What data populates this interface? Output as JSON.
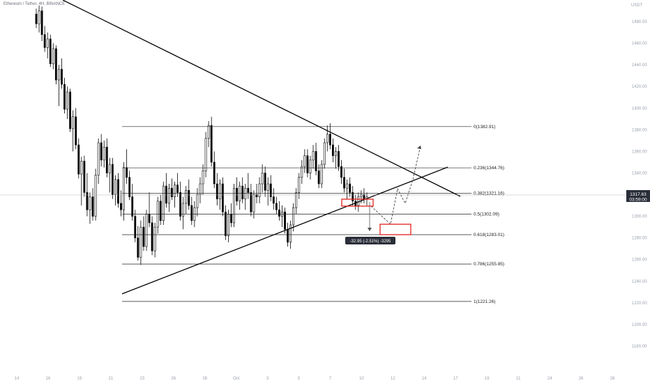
{
  "header": {
    "symbol_title": "Ethereum / Tether",
    "timeframe": "4H",
    "exchange": "BINANCE"
  },
  "colors": {
    "up": "#ffffff",
    "down": "#000000",
    "outline": "#000000",
    "fib": "#222222",
    "box": "#e0201b",
    "label_bg": "#2a2e39",
    "current_line": "#b2b5be"
  },
  "chart_data": {
    "type": "candlestick",
    "yunit": "USDT",
    "ylim": [
      1160,
      1500
    ],
    "y_ticks": [
      1180,
      1200,
      1220,
      1240,
      1260,
      1280,
      1300,
      1320,
      1340,
      1360,
      1380,
      1400,
      1420,
      1440,
      1460,
      1480
    ],
    "x_ticks": [
      "14",
      "16",
      "19",
      "21",
      "23",
      "26",
      "28",
      "Oct",
      "3",
      "5",
      "7",
      "10",
      "12",
      "14",
      "17",
      "19",
      "21",
      "24",
      "26",
      "28"
    ],
    "current_price": {
      "value": "1317.63",
      "countdown": "03:59:00"
    },
    "fib_levels": [
      {
        "ratio": "0",
        "price": 1382.91,
        "label": "0(1382.91)"
      },
      {
        "ratio": "0.236",
        "price": 1344.76,
        "label": "0.236(1344.76)"
      },
      {
        "ratio": "0.382",
        "price": 1321.16,
        "label": "0.382(1321.16)"
      },
      {
        "ratio": "0.5",
        "price": 1302.09,
        "label": "0.5(1302.09)"
      },
      {
        "ratio": "0.618",
        "price": 1283.01,
        "label": "0.618(1283.01)"
      },
      {
        "ratio": "0.786",
        "price": 1255.85,
        "label": "0.786(1255.85)"
      },
      {
        "ratio": "1",
        "price": 1221.26,
        "label": "1(1221.26)"
      }
    ],
    "measure_label": "-32.95 (-2.51%) -3295",
    "candles": [
      [
        1487,
        1492,
        1474,
        1478
      ],
      [
        1478,
        1495,
        1470,
        1490
      ],
      [
        1490,
        1494,
        1462,
        1468
      ],
      [
        1468,
        1476,
        1452,
        1456
      ],
      [
        1456,
        1470,
        1446,
        1464
      ],
      [
        1464,
        1468,
        1438,
        1441
      ],
      [
        1441,
        1460,
        1436,
        1455
      ],
      [
        1455,
        1458,
        1422,
        1426
      ],
      [
        1426,
        1440,
        1402,
        1436
      ],
      [
        1436,
        1446,
        1418,
        1422
      ],
      [
        1422,
        1428,
        1395,
        1399
      ],
      [
        1399,
        1420,
        1390,
        1415
      ],
      [
        1415,
        1418,
        1378,
        1381
      ],
      [
        1381,
        1398,
        1360,
        1392
      ],
      [
        1392,
        1400,
        1362,
        1366
      ],
      [
        1366,
        1372,
        1335,
        1339
      ],
      [
        1339,
        1355,
        1310,
        1351
      ],
      [
        1351,
        1356,
        1318,
        1322
      ],
      [
        1322,
        1340,
        1300,
        1306
      ],
      [
        1306,
        1322,
        1293,
        1318
      ],
      [
        1318,
        1326,
        1296,
        1300
      ],
      [
        1300,
        1344,
        1296,
        1338
      ],
      [
        1338,
        1372,
        1330,
        1368
      ],
      [
        1368,
        1376,
        1346,
        1352
      ],
      [
        1352,
        1370,
        1345,
        1364
      ],
      [
        1364,
        1372,
        1336,
        1340
      ],
      [
        1340,
        1354,
        1322,
        1348
      ],
      [
        1348,
        1354,
        1316,
        1320
      ],
      [
        1320,
        1338,
        1310,
        1334
      ],
      [
        1334,
        1340,
        1308,
        1312
      ],
      [
        1312,
        1324,
        1300,
        1306
      ],
      [
        1306,
        1350,
        1296,
        1345
      ],
      [
        1345,
        1362,
        1330,
        1336
      ],
      [
        1336,
        1342,
        1315,
        1318
      ],
      [
        1318,
        1330,
        1296,
        1300
      ],
      [
        1300,
        1306,
        1276,
        1280
      ],
      [
        1280,
        1291,
        1259,
        1262
      ],
      [
        1262,
        1296,
        1255,
        1290
      ],
      [
        1290,
        1300,
        1268,
        1272
      ],
      [
        1272,
        1306,
        1268,
        1302
      ],
      [
        1302,
        1322,
        1290,
        1294
      ],
      [
        1294,
        1300,
        1264,
        1268
      ],
      [
        1268,
        1294,
        1262,
        1290
      ],
      [
        1290,
        1318,
        1284,
        1314
      ],
      [
        1314,
        1320,
        1292,
        1296
      ],
      [
        1296,
        1332,
        1292,
        1328
      ],
      [
        1328,
        1340,
        1308,
        1312
      ],
      [
        1312,
        1330,
        1304,
        1326
      ],
      [
        1326,
        1335,
        1315,
        1318
      ],
      [
        1318,
        1332,
        1308,
        1329
      ],
      [
        1329,
        1340,
        1318,
        1322
      ],
      [
        1322,
        1332,
        1296,
        1300
      ],
      [
        1300,
        1318,
        1288,
        1312
      ],
      [
        1312,
        1328,
        1302,
        1324
      ],
      [
        1324,
        1334,
        1306,
        1310
      ],
      [
        1310,
        1318,
        1292,
        1296
      ],
      [
        1296,
        1314,
        1290,
        1308
      ],
      [
        1308,
        1326,
        1300,
        1320
      ],
      [
        1320,
        1336,
        1312,
        1330
      ],
      [
        1330,
        1348,
        1320,
        1342
      ],
      [
        1342,
        1378,
        1336,
        1372
      ],
      [
        1372,
        1388,
        1364,
        1384
      ],
      [
        1384,
        1392,
        1346,
        1350
      ],
      [
        1350,
        1360,
        1326,
        1330
      ],
      [
        1330,
        1340,
        1310,
        1316
      ],
      [
        1316,
        1334,
        1306,
        1330
      ],
      [
        1330,
        1336,
        1300,
        1304
      ],
      [
        1304,
        1310,
        1278,
        1282
      ],
      [
        1282,
        1306,
        1276,
        1302
      ],
      [
        1302,
        1312,
        1290,
        1294
      ],
      [
        1294,
        1330,
        1290,
        1326
      ],
      [
        1326,
        1336,
        1310,
        1314
      ],
      [
        1314,
        1332,
        1306,
        1328
      ],
      [
        1328,
        1336,
        1312,
        1316
      ],
      [
        1316,
        1330,
        1306,
        1326
      ],
      [
        1326,
        1340,
        1316,
        1322
      ],
      [
        1322,
        1330,
        1300,
        1304
      ],
      [
        1304,
        1324,
        1298,
        1320
      ],
      [
        1320,
        1330,
        1312,
        1318
      ],
      [
        1318,
        1336,
        1312,
        1330
      ],
      [
        1330,
        1348,
        1322,
        1340
      ],
      [
        1340,
        1346,
        1318,
        1324
      ],
      [
        1324,
        1336,
        1310,
        1330
      ],
      [
        1330,
        1338,
        1314,
        1318
      ],
      [
        1318,
        1326,
        1306,
        1312
      ],
      [
        1312,
        1318,
        1302,
        1306
      ],
      [
        1306,
        1314,
        1296,
        1300
      ],
      [
        1300,
        1310,
        1290,
        1304
      ],
      [
        1304,
        1308,
        1284,
        1288
      ],
      [
        1288,
        1294,
        1272,
        1276
      ],
      [
        1276,
        1296,
        1270,
        1292
      ],
      [
        1292,
        1312,
        1286,
        1308
      ],
      [
        1308,
        1326,
        1302,
        1322
      ],
      [
        1322,
        1340,
        1316,
        1336
      ],
      [
        1336,
        1352,
        1330,
        1346
      ],
      [
        1346,
        1362,
        1340,
        1356
      ],
      [
        1356,
        1362,
        1336,
        1340
      ],
      [
        1340,
        1356,
        1334,
        1352
      ],
      [
        1352,
        1366,
        1344,
        1360
      ],
      [
        1360,
        1368,
        1338,
        1342
      ],
      [
        1342,
        1348,
        1326,
        1330
      ],
      [
        1330,
        1352,
        1326,
        1348
      ],
      [
        1348,
        1372,
        1344,
        1368
      ],
      [
        1368,
        1384,
        1360,
        1376
      ],
      [
        1376,
        1386,
        1362,
        1366
      ],
      [
        1366,
        1372,
        1350,
        1356
      ],
      [
        1356,
        1364,
        1344,
        1360
      ],
      [
        1360,
        1366,
        1342,
        1346
      ],
      [
        1346,
        1352,
        1330,
        1336
      ],
      [
        1336,
        1344,
        1322,
        1326
      ],
      [
        1326,
        1334,
        1316,
        1330
      ],
      [
        1330,
        1336,
        1318,
        1322
      ],
      [
        1322,
        1328,
        1310,
        1314
      ],
      [
        1314,
        1320,
        1306,
        1310
      ],
      [
        1310,
        1322,
        1304,
        1318
      ],
      [
        1318,
        1324,
        1312,
        1320
      ],
      [
        1320,
        1326,
        1312,
        1316
      ],
      [
        1316,
        1322,
        1310,
        1318
      ]
    ]
  }
}
